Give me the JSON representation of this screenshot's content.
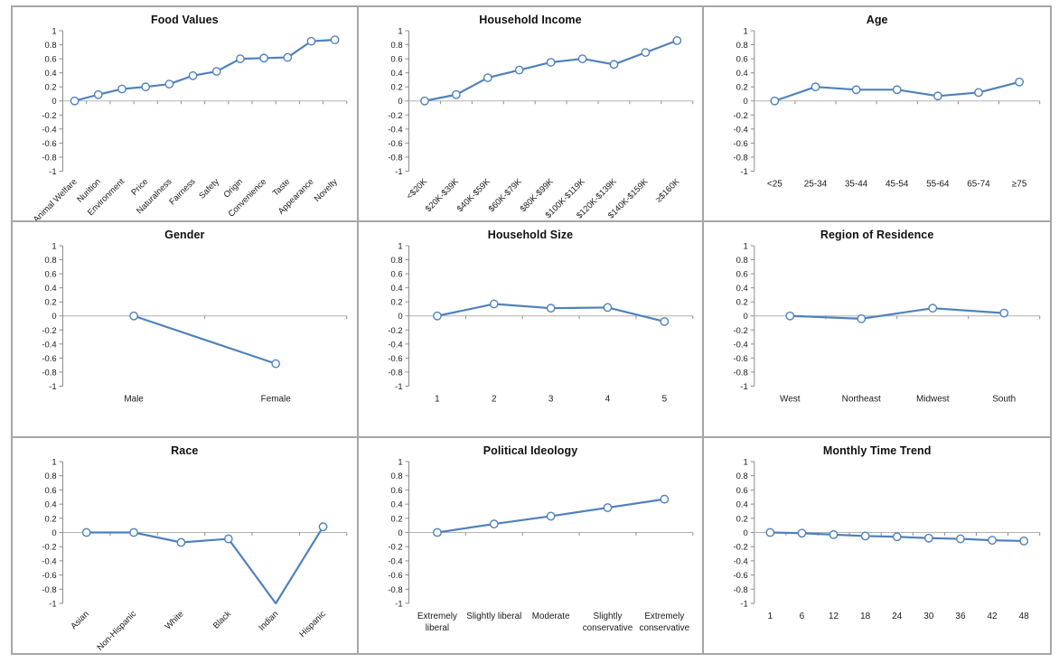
{
  "page": {
    "background": "#ffffff",
    "frame_border_color": "#a6a6a6"
  },
  "chart_style": {
    "line_color": "#4F81BD",
    "marker_fill": "#ffffff",
    "axis_line_color": "#8c8c8c",
    "zero_line_color": "#b3b3b3",
    "text_color": "#1a1a1a"
  },
  "y_axis": {
    "min": -1,
    "max": 1,
    "tick_step": 0.2,
    "ticks": [
      "1",
      "0.8",
      "0.6",
      "0.4",
      "0.2",
      "0",
      "-0.2",
      "-0.4",
      "-0.6",
      "-0.8",
      "-1"
    ]
  },
  "chart_data": [
    {
      "type": "line",
      "title": "Food Values",
      "categories": [
        "Animal Welfare",
        "Nurition",
        "Environment",
        "Price",
        "Naturalness",
        "Fairness",
        "Safety",
        "Origin",
        "Convenience",
        "Taste",
        "Appearance",
        "Novelty"
      ],
      "values": [
        0,
        0.09,
        0.17,
        0.2,
        0.24,
        0.36,
        0.42,
        0.6,
        0.61,
        0.62,
        0.85,
        0.87
      ],
      "label_rotation": 45,
      "ylim": [
        -1,
        1
      ],
      "grid": false,
      "legend": "none"
    },
    {
      "type": "line",
      "title": "Household Income",
      "categories": [
        "<$20K",
        "$20K-$39K",
        "$40K-$59K",
        "$60K-$79K",
        "$80K-$99K",
        "$100K-$119K",
        "$120K-$139K",
        "$140K-$159K",
        "≥$160K"
      ],
      "values": [
        0,
        0.09,
        0.33,
        0.44,
        0.55,
        0.6,
        0.52,
        0.69,
        0.86
      ],
      "label_rotation": 45,
      "ylim": [
        -1,
        1
      ],
      "grid": false,
      "legend": "none"
    },
    {
      "type": "line",
      "title": "Age",
      "categories": [
        "<25",
        "25-34",
        "35-44",
        "45-54",
        "55-64",
        "65-74",
        "≥75"
      ],
      "values": [
        0,
        0.2,
        0.16,
        0.16,
        0.07,
        0.12,
        0.27
      ],
      "label_rotation": 0,
      "ylim": [
        -1,
        1
      ],
      "grid": false,
      "legend": "none"
    },
    {
      "type": "line",
      "title": "Gender",
      "categories": [
        "Male",
        "Female"
      ],
      "values": [
        0,
        -0.68
      ],
      "label_rotation": 0,
      "ylim": [
        -1,
        1
      ],
      "grid": false,
      "legend": "none"
    },
    {
      "type": "line",
      "title": "Household Size",
      "categories": [
        "1",
        "2",
        "3",
        "4",
        "5"
      ],
      "values": [
        0,
        0.17,
        0.11,
        0.12,
        -0.08
      ],
      "label_rotation": 0,
      "ylim": [
        -1,
        1
      ],
      "grid": false,
      "legend": "none"
    },
    {
      "type": "line",
      "title": "Region of Residence",
      "categories": [
        "West",
        "Northeast",
        "Midwest",
        "South"
      ],
      "values": [
        0,
        -0.04,
        0.11,
        0.04
      ],
      "label_rotation": 0,
      "ylim": [
        -1,
        1
      ],
      "grid": false,
      "legend": "none"
    },
    {
      "type": "line",
      "title": "Race",
      "categories": [
        "Asian",
        "Non-Hispanic",
        "White",
        "Black",
        "Indian",
        "Hispanic"
      ],
      "values": [
        0,
        0,
        -0.14,
        -0.09,
        -1,
        0.08
      ],
      "markers": [
        true,
        true,
        true,
        true,
        false,
        true
      ],
      "label_rotation": 45,
      "ylim": [
        -1,
        1
      ],
      "grid": false,
      "legend": "none"
    },
    {
      "type": "line",
      "title": "Political Ideology",
      "categories": [
        "Extremely\nliberal",
        "Slightly liberal",
        "Moderate",
        "Slightly\nconservative",
        "Extremely\nconservative"
      ],
      "values": [
        0,
        0.12,
        0.23,
        0.35,
        0.47
      ],
      "label_rotation": 0,
      "ylim": [
        -1,
        1
      ],
      "grid": false,
      "legend": "none"
    },
    {
      "type": "line",
      "title": "Monthly Time Trend",
      "categories": [
        "1",
        "6",
        "12",
        "18",
        "24",
        "30",
        "36",
        "42",
        "48"
      ],
      "values": [
        0,
        -0.01,
        -0.03,
        -0.05,
        -0.06,
        -0.08,
        -0.09,
        -0.11,
        -0.12
      ],
      "label_rotation": 0,
      "ylim": [
        -1,
        1
      ],
      "grid": false,
      "legend": "none"
    }
  ]
}
